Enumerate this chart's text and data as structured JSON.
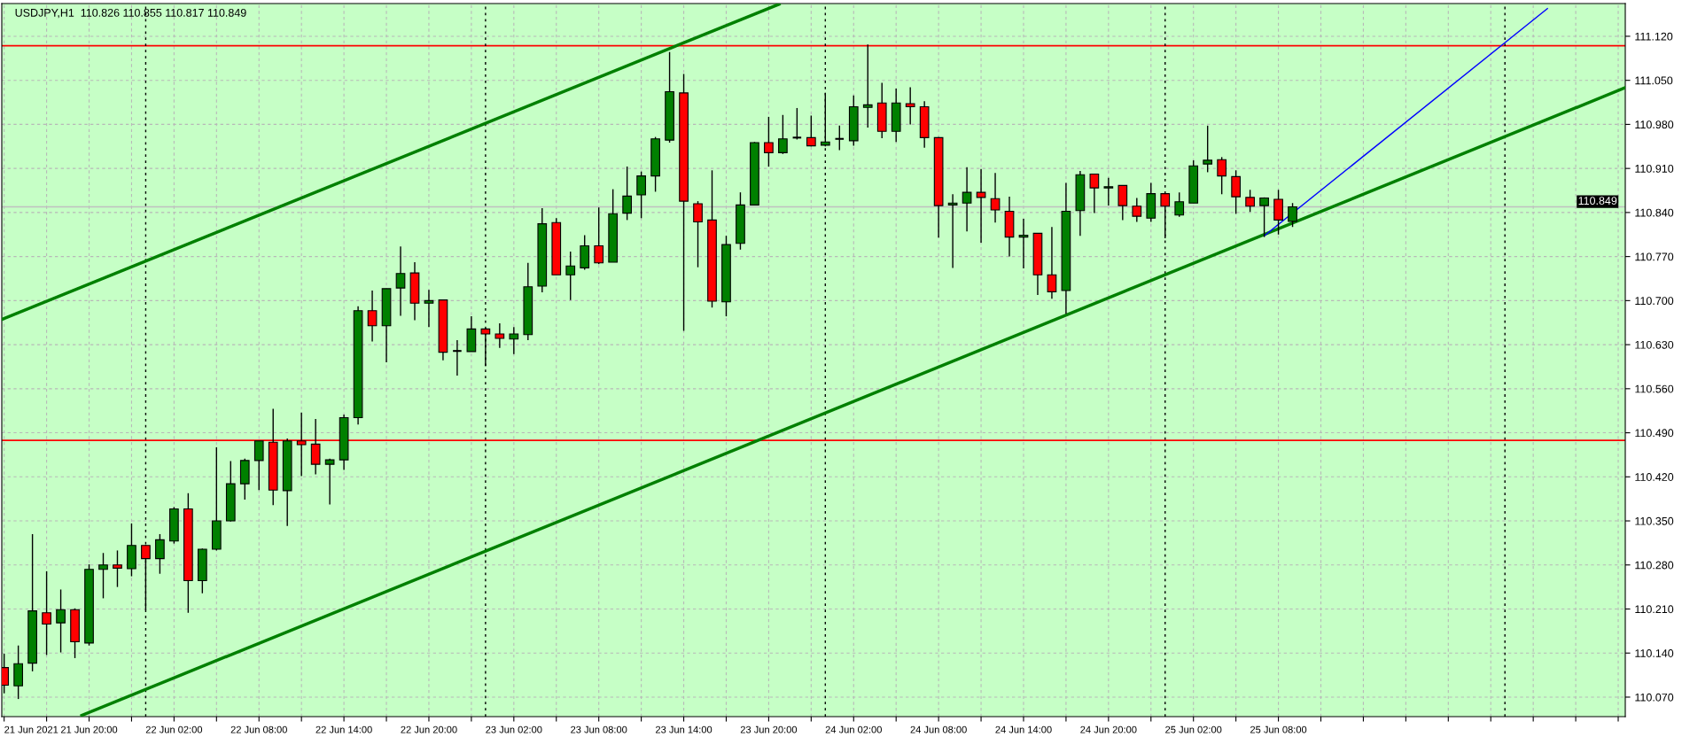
{
  "chart_data": {
    "type": "candlestick",
    "title": "USDJPY,H1  110.826 110.855 110.817 110.849",
    "x": [
      "2021-06-21T14:00",
      "2021-06-21T15:00",
      "2021-06-21T16:00",
      "2021-06-21T17:00",
      "2021-06-21T18:00",
      "2021-06-21T19:00",
      "2021-06-21T20:00",
      "2021-06-21T21:00",
      "2021-06-21T22:00",
      "2021-06-21T23:00",
      "2021-06-22T00:00",
      "2021-06-22T01:00",
      "2021-06-22T02:00",
      "2021-06-22T03:00",
      "2021-06-22T04:00",
      "2021-06-22T05:00",
      "2021-06-22T06:00",
      "2021-06-22T07:00",
      "2021-06-22T08:00",
      "2021-06-22T09:00",
      "2021-06-22T10:00",
      "2021-06-22T11:00",
      "2021-06-22T12:00",
      "2021-06-22T13:00",
      "2021-06-22T14:00",
      "2021-06-22T15:00",
      "2021-06-22T16:00",
      "2021-06-22T17:00",
      "2021-06-22T18:00",
      "2021-06-22T19:00",
      "2021-06-22T20:00",
      "2021-06-22T21:00",
      "2021-06-22T22:00",
      "2021-06-22T23:00",
      "2021-06-23T00:00",
      "2021-06-23T01:00",
      "2021-06-23T02:00",
      "2021-06-23T03:00",
      "2021-06-23T04:00",
      "2021-06-23T05:00",
      "2021-06-23T06:00",
      "2021-06-23T07:00",
      "2021-06-23T08:00",
      "2021-06-23T09:00",
      "2021-06-23T10:00",
      "2021-06-23T11:00",
      "2021-06-23T12:00",
      "2021-06-23T13:00",
      "2021-06-23T14:00",
      "2021-06-23T15:00",
      "2021-06-23T16:00",
      "2021-06-23T17:00",
      "2021-06-23T18:00",
      "2021-06-23T19:00",
      "2021-06-23T20:00",
      "2021-06-23T21:00",
      "2021-06-23T22:00",
      "2021-06-23T23:00",
      "2021-06-24T00:00",
      "2021-06-24T01:00",
      "2021-06-24T02:00",
      "2021-06-24T03:00",
      "2021-06-24T04:00",
      "2021-06-24T05:00",
      "2021-06-24T06:00",
      "2021-06-24T07:00",
      "2021-06-24T08:00",
      "2021-06-24T09:00",
      "2021-06-24T10:00",
      "2021-06-24T11:00",
      "2021-06-24T12:00",
      "2021-06-24T13:00",
      "2021-06-24T14:00",
      "2021-06-24T15:00",
      "2021-06-24T16:00",
      "2021-06-24T17:00",
      "2021-06-24T18:00",
      "2021-06-24T19:00",
      "2021-06-24T20:00",
      "2021-06-24T21:00",
      "2021-06-24T22:00",
      "2021-06-24T23:00",
      "2021-06-25T00:00",
      "2021-06-25T01:00",
      "2021-06-25T02:00",
      "2021-06-25T03:00",
      "2021-06-25T04:00",
      "2021-06-25T05:00",
      "2021-06-25T06:00",
      "2021-06-25T07:00",
      "2021-06-25T08:00",
      "2021-06-25T09:00"
    ],
    "ohlc": [
      [
        110.117,
        110.139,
        110.076,
        110.089
      ],
      [
        110.088,
        110.152,
        110.067,
        110.123
      ],
      [
        110.124,
        110.329,
        110.111,
        110.207
      ],
      [
        110.204,
        110.27,
        110.137,
        110.186
      ],
      [
        110.188,
        110.241,
        110.141,
        110.209
      ],
      [
        110.209,
        110.211,
        110.132,
        110.158
      ],
      [
        110.156,
        110.281,
        110.152,
        110.273
      ],
      [
        110.273,
        110.299,
        110.227,
        110.28
      ],
      [
        110.28,
        110.303,
        110.245,
        110.275
      ],
      [
        110.274,
        110.346,
        110.262,
        110.311
      ],
      [
        110.311,
        110.312,
        110.208,
        110.29
      ],
      [
        110.29,
        110.329,
        110.266,
        110.32
      ],
      [
        110.318,
        110.372,
        110.314,
        110.369
      ],
      [
        110.369,
        110.394,
        110.204,
        110.255
      ],
      [
        110.255,
        110.306,
        110.235,
        110.305
      ],
      [
        110.305,
        110.467,
        110.303,
        110.35
      ],
      [
        110.35,
        110.445,
        110.349,
        110.409
      ],
      [
        110.409,
        110.449,
        110.384,
        110.446
      ],
      [
        110.446,
        110.477,
        110.399,
        110.477
      ],
      [
        110.475,
        110.528,
        110.375,
        110.399
      ],
      [
        110.398,
        110.481,
        110.342,
        110.477
      ],
      [
        110.477,
        110.522,
        110.421,
        110.471
      ],
      [
        110.472,
        110.512,
        110.424,
        110.44
      ],
      [
        110.44,
        110.449,
        110.376,
        110.447
      ],
      [
        110.447,
        110.519,
        110.431,
        110.514
      ],
      [
        110.514,
        110.691,
        110.503,
        110.684
      ],
      [
        110.684,
        110.716,
        110.635,
        110.66
      ],
      [
        110.66,
        110.719,
        110.602,
        110.719
      ],
      [
        110.72,
        110.786,
        110.676,
        110.743
      ],
      [
        110.744,
        110.761,
        110.669,
        110.696
      ],
      [
        110.696,
        110.717,
        110.658,
        110.7
      ],
      [
        110.701,
        110.701,
        110.605,
        110.618
      ],
      [
        110.62,
        110.637,
        110.581,
        110.62
      ],
      [
        110.619,
        110.675,
        110.619,
        110.655
      ],
      [
        110.655,
        110.657,
        110.596,
        110.647
      ],
      [
        110.647,
        110.664,
        110.625,
        110.64
      ],
      [
        110.639,
        110.658,
        110.615,
        110.647
      ],
      [
        110.646,
        110.76,
        110.637,
        110.722
      ],
      [
        110.723,
        110.847,
        110.713,
        110.822
      ],
      [
        110.824,
        110.831,
        110.741,
        110.741
      ],
      [
        110.741,
        110.778,
        110.701,
        110.755
      ],
      [
        110.752,
        110.804,
        110.749,
        110.787
      ],
      [
        110.787,
        110.848,
        110.758,
        110.76
      ],
      [
        110.761,
        110.877,
        110.761,
        110.838
      ],
      [
        110.839,
        110.913,
        110.828,
        110.866
      ],
      [
        110.868,
        110.905,
        110.831,
        110.898
      ],
      [
        110.898,
        110.96,
        110.873,
        110.957
      ],
      [
        110.955,
        111.095,
        110.951,
        111.032
      ],
      [
        111.03,
        111.06,
        110.652,
        110.858
      ],
      [
        110.854,
        110.858,
        110.753,
        110.825
      ],
      [
        110.828,
        110.907,
        110.689,
        110.699
      ],
      [
        110.698,
        110.803,
        110.675,
        110.789
      ],
      [
        110.791,
        110.872,
        110.781,
        110.852
      ],
      [
        110.852,
        110.952,
        110.852,
        110.951
      ],
      [
        110.951,
        110.992,
        110.913,
        110.935
      ],
      [
        110.935,
        110.995,
        110.933,
        110.957
      ],
      [
        110.959,
        111.006,
        110.956,
        110.959
      ],
      [
        110.959,
        110.994,
        110.945,
        110.946
      ],
      [
        110.947,
        111.03,
        110.945,
        110.952
      ],
      [
        110.957,
        110.978,
        110.939,
        110.957
      ],
      [
        110.954,
        111.026,
        110.946,
        111.008
      ],
      [
        111.007,
        111.107,
        110.975,
        111.011
      ],
      [
        111.014,
        111.046,
        110.958,
        110.969
      ],
      [
        110.969,
        111.037,
        110.952,
        111.014
      ],
      [
        111.013,
        111.039,
        110.98,
        111.008
      ],
      [
        111.008,
        111.017,
        110.943,
        110.959
      ],
      [
        110.959,
        110.96,
        110.8,
        110.851
      ],
      [
        110.852,
        110.869,
        110.752,
        110.855
      ],
      [
        110.855,
        110.912,
        110.81,
        110.872
      ],
      [
        110.872,
        110.909,
        110.792,
        110.864
      ],
      [
        110.862,
        110.903,
        110.824,
        110.844
      ],
      [
        110.842,
        110.865,
        110.77,
        110.801
      ],
      [
        110.801,
        110.83,
        110.751,
        110.804
      ],
      [
        110.807,
        110.807,
        110.709,
        110.741
      ],
      [
        110.741,
        110.817,
        110.703,
        110.714
      ],
      [
        110.716,
        110.887,
        110.679,
        110.842
      ],
      [
        110.843,
        110.906,
        110.803,
        110.9
      ],
      [
        110.901,
        110.901,
        110.839,
        110.879
      ],
      [
        110.879,
        110.895,
        110.851,
        110.881
      ],
      [
        110.883,
        110.883,
        110.828,
        110.851
      ],
      [
        110.85,
        110.863,
        110.825,
        110.834
      ],
      [
        110.831,
        110.887,
        110.825,
        110.87
      ],
      [
        110.87,
        110.87,
        110.799,
        110.85
      ],
      [
        110.836,
        110.872,
        110.833,
        110.857
      ],
      [
        110.855,
        110.923,
        110.855,
        110.914
      ],
      [
        110.917,
        110.978,
        110.904,
        110.923
      ],
      [
        110.924,
        110.928,
        110.869,
        110.898
      ],
      [
        110.897,
        110.907,
        110.838,
        110.865
      ],
      [
        110.864,
        110.876,
        110.841,
        110.85
      ],
      [
        110.851,
        110.864,
        110.801,
        110.863
      ],
      [
        110.861,
        110.876,
        110.805,
        110.828
      ],
      [
        110.826,
        110.855,
        110.817,
        110.849
      ]
    ],
    "colors": [
      "#ff0000",
      "#008000",
      "#008000",
      "#ff0000",
      "#008000",
      "#ff0000",
      "#008000",
      "#008000",
      "#ff0000",
      "#008000",
      "#ff0000",
      "#008000",
      "#008000",
      "#ff0000",
      "#008000",
      "#008000",
      "#008000",
      "#008000",
      "#008000",
      "#ff0000",
      "#008000",
      "#ff0000",
      "#ff0000",
      "#008000",
      "#008000",
      "#008000",
      "#ff0000",
      "#008000",
      "#008000",
      "#ff0000",
      "#008000",
      "#ff0000",
      "#000000",
      "#008000",
      "#ff0000",
      "#ff0000",
      "#008000",
      "#008000",
      "#008000",
      "#ff0000",
      "#008000",
      "#008000",
      "#ff0000",
      "#008000",
      "#008000",
      "#008000",
      "#008000",
      "#008000",
      "#ff0000",
      "#ff0000",
      "#ff0000",
      "#008000",
      "#008000",
      "#008000",
      "#ff0000",
      "#008000",
      "#000000",
      "#ff0000",
      "#008000",
      "#000000",
      "#008000",
      "#008000",
      "#ff0000",
      "#008000",
      "#ff0000",
      "#ff0000",
      "#ff0000",
      "#008000",
      "#008000",
      "#ff0000",
      "#ff0000",
      "#ff0000",
      "#008000",
      "#ff0000",
      "#ff0000",
      "#008000",
      "#008000",
      "#ff0000",
      "#008000",
      "#ff0000",
      "#ff0000",
      "#008000",
      "#ff0000",
      "#008000",
      "#008000",
      "#008000",
      "#ff0000",
      "#ff0000",
      "#ff0000",
      "#008000",
      "#ff0000",
      "#008000"
    ],
    "series": [
      {
        "type": "line",
        "color": "#008000",
        "x": [
          "2021-06-21T13:50",
          "2021-06-23T20:44"
        ],
        "values": [
          110.67,
          111.171
        ]
      },
      {
        "type": "line",
        "color": "#008000",
        "x": [
          "2021-06-21T19:29",
          "2021-06-26T08:28"
        ],
        "values": [
          110.041,
          111.038
        ]
      },
      {
        "type": "line",
        "color": "#0000ff",
        "x": [
          "2021-06-25T07:00",
          "2021-06-26T03:00"
        ],
        "values": [
          110.803,
          111.164
        ]
      }
    ],
    "ref_lines": [
      {
        "axis": "y",
        "value": 111.105,
        "color": "#ff0000",
        "line_style": "solid"
      },
      {
        "axis": "y",
        "value": 110.478,
        "color": "#ff0000",
        "line_style": "solid"
      },
      {
        "axis": "y",
        "value": 110.849,
        "color": "#c0c0c0",
        "line_style": "solid",
        "label": "110.849"
      },
      {
        "axis": "x",
        "value": "2021-06-22T00:00",
        "color": "#000000",
        "line_style": "dotted"
      },
      {
        "axis": "x",
        "value": "2021-06-23T00:00",
        "color": "#000000",
        "line_style": "dotted"
      },
      {
        "axis": "x",
        "value": "2021-06-24T00:00",
        "color": "#000000",
        "line_style": "dotted"
      },
      {
        "axis": "x",
        "value": "2021-06-25T00:00",
        "color": "#000000",
        "line_style": "dotted"
      },
      {
        "axis": "x",
        "value": "2021-06-26T00:00",
        "color": "#000000",
        "line_style": "dotted"
      }
    ],
    "xlim": [
      "2021-06-21T13:50",
      "2021-06-26T08:30"
    ],
    "xticks": [
      {
        "value": "2021-06-21T14:00",
        "label": "21 Jun 2021"
      },
      {
        "value": "2021-06-21T17:00",
        "label": null
      },
      {
        "value": "2021-06-21T20:00",
        "label": "21 Jun 20:00"
      },
      {
        "value": "2021-06-21T23:00",
        "label": null
      },
      {
        "value": "2021-06-22T02:00",
        "label": "22 Jun 02:00"
      },
      {
        "value": "2021-06-22T05:00",
        "label": null
      },
      {
        "value": "2021-06-22T08:00",
        "label": "22 Jun 08:00"
      },
      {
        "value": "2021-06-22T11:00",
        "label": null
      },
      {
        "value": "2021-06-22T14:00",
        "label": "22 Jun 14:00"
      },
      {
        "value": "2021-06-22T17:00",
        "label": null
      },
      {
        "value": "2021-06-22T20:00",
        "label": "22 Jun 20:00"
      },
      {
        "value": "2021-06-22T23:00",
        "label": null
      },
      {
        "value": "2021-06-23T02:00",
        "label": "23 Jun 02:00"
      },
      {
        "value": "2021-06-23T05:00",
        "label": null
      },
      {
        "value": "2021-06-23T08:00",
        "label": "23 Jun 08:00"
      },
      {
        "value": "2021-06-23T11:00",
        "label": null
      },
      {
        "value": "2021-06-23T14:00",
        "label": "23 Jun 14:00"
      },
      {
        "value": "2021-06-23T17:00",
        "label": null
      },
      {
        "value": "2021-06-23T20:00",
        "label": "23 Jun 20:00"
      },
      {
        "value": "2021-06-23T23:00",
        "label": null
      },
      {
        "value": "2021-06-24T02:00",
        "label": "24 Jun 02:00"
      },
      {
        "value": "2021-06-24T05:00",
        "label": null
      },
      {
        "value": "2021-06-24T08:00",
        "label": "24 Jun 08:00"
      },
      {
        "value": "2021-06-24T11:00",
        "label": null
      },
      {
        "value": "2021-06-24T14:00",
        "label": "24 Jun 14:00"
      },
      {
        "value": "2021-06-24T17:00",
        "label": null
      },
      {
        "value": "2021-06-24T20:00",
        "label": "24 Jun 20:00"
      },
      {
        "value": "2021-06-24T23:00",
        "label": null
      },
      {
        "value": "2021-06-25T02:00",
        "label": "25 Jun 02:00"
      },
      {
        "value": "2021-06-25T05:00",
        "label": null
      },
      {
        "value": "2021-06-25T08:00",
        "label": "25 Jun 08:00"
      },
      {
        "value": "2021-06-25T11:00",
        "label": null
      },
      {
        "value": "2021-06-25T14:00",
        "label": null
      },
      {
        "value": "2021-06-25T17:00",
        "label": null
      },
      {
        "value": "2021-06-25T20:00",
        "label": null
      },
      {
        "value": "2021-06-25T23:00",
        "label": null
      },
      {
        "value": "2021-06-26T02:00",
        "label": null
      },
      {
        "value": "2021-06-26T05:00",
        "label": null
      },
      {
        "value": "2021-06-26T08:00",
        "label": null
      }
    ],
    "ylim": [
      110.039,
      111.172
    ],
    "yticks": [
      {
        "value": 110.07,
        "label": "110.070"
      },
      {
        "value": 110.14,
        "label": "110.140"
      },
      {
        "value": 110.21,
        "label": "110.210"
      },
      {
        "value": 110.28,
        "label": "110.280"
      },
      {
        "value": 110.35,
        "label": "110.350"
      },
      {
        "value": 110.42,
        "label": "110.420"
      },
      {
        "value": 110.49,
        "label": "110.490"
      },
      {
        "value": 110.56,
        "label": "110.560"
      },
      {
        "value": 110.63,
        "label": "110.630"
      },
      {
        "value": 110.7,
        "label": "110.700"
      },
      {
        "value": 110.77,
        "label": "110.770"
      },
      {
        "value": 110.84,
        "label": "110.840"
      },
      {
        "value": 110.91,
        "label": "110.910"
      },
      {
        "value": 110.98,
        "label": "110.980"
      },
      {
        "value": 111.05,
        "label": "111.050"
      },
      {
        "value": 111.12,
        "label": "111.120"
      }
    ],
    "grid": true,
    "legend": false
  }
}
